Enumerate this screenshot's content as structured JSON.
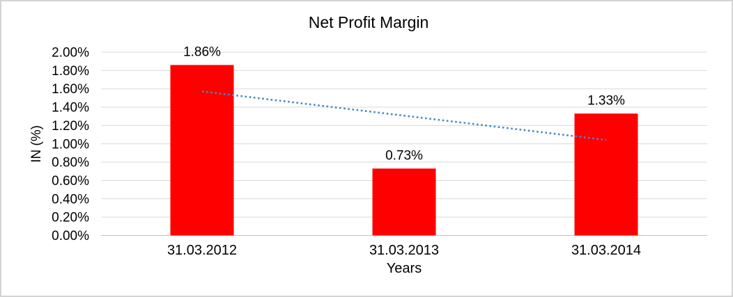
{
  "frame": {
    "background_color": "#ffffff",
    "border_color": "#d3d3d3"
  },
  "chart_data": {
    "type": "bar",
    "title": "Net Profit Margin",
    "xlabel": "Years",
    "ylabel": "IN (%)",
    "categories": [
      "31.03.2012",
      "31.03.2013",
      "31.03.2014"
    ],
    "series": [
      {
        "name": "Net Profit Margin",
        "values": [
          1.86,
          0.73,
          1.33
        ]
      }
    ],
    "data_labels": [
      "1.86%",
      "0.73%",
      "1.33%"
    ],
    "y_ticks": [
      "2.00%",
      "1.80%",
      "1.60%",
      "1.40%",
      "1.20%",
      "1.00%",
      "0.80%",
      "0.60%",
      "0.40%",
      "0.20%",
      "0.00%"
    ],
    "ylim": [
      0,
      2.0
    ],
    "y_tick_step": 0.2,
    "grid": true,
    "legend": "none",
    "bar_color": "#ff0000",
    "gridline_color": "#d9d9d9",
    "axis_line_color": "#bfbfbf",
    "text_color": "#000000",
    "trendline": {
      "type": "linear",
      "style": "dotted",
      "color": "#4a86c8",
      "start_value": 1.572,
      "end_value": 1.042
    }
  }
}
